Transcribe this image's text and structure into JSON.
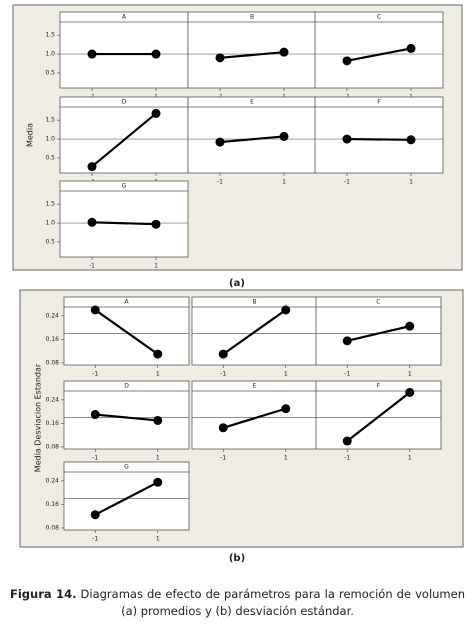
{
  "chart_data": [
    {
      "type": "line",
      "title": "A",
      "x": [
        -1,
        1
      ],
      "values": [
        1.0,
        1.0
      ],
      "color": "#000000",
      "xlim": [
        -2,
        2
      ],
      "ylim": [
        0.1,
        1.85
      ],
      "xticks": [
        -1,
        1
      ],
      "yticks": [
        0.5,
        {
          "value": 1.0,
          "label": "1.0"
        },
        1.5
      ],
      "hline": 1.0
    },
    {
      "type": "line",
      "title": "B",
      "x": [
        -1,
        1
      ],
      "values": [
        0.9,
        1.05
      ],
      "color": "#000000",
      "xlim": [
        -2,
        2
      ],
      "ylim": [
        0.1,
        1.85
      ],
      "xticks": [
        -1,
        1
      ],
      "hline": 1.0
    },
    {
      "type": "line",
      "title": "C",
      "x": [
        -1,
        1
      ],
      "values": [
        0.82,
        1.15
      ],
      "color": "#000000",
      "xlim": [
        -2,
        2
      ],
      "ylim": [
        0.1,
        1.85
      ],
      "xticks": [
        -1,
        1
      ],
      "hline": 1.0
    },
    {
      "type": "line",
      "title": "D",
      "x": [
        -1,
        1
      ],
      "values": [
        0.27,
        1.68
      ],
      "color": "#000000",
      "xlim": [
        -2,
        2
      ],
      "ylim": [
        0.1,
        1.85
      ],
      "xticks": [
        -1,
        1
      ],
      "yticks": [
        0.5,
        {
          "value": 1.0,
          "label": "1.0"
        },
        1.5
      ],
      "hline": 1.0
    },
    {
      "type": "line",
      "title": "E",
      "x": [
        -1,
        1
      ],
      "values": [
        0.92,
        1.07
      ],
      "color": "#000000",
      "xlim": [
        -2,
        2
      ],
      "ylim": [
        0.1,
        1.85
      ],
      "xticks": [
        -1,
        1
      ],
      "hline": 1.0
    },
    {
      "type": "line",
      "title": "F",
      "x": [
        -1,
        1
      ],
      "values": [
        1.0,
        0.98
      ],
      "color": "#000000",
      "xlim": [
        -2,
        2
      ],
      "ylim": [
        0.1,
        1.85
      ],
      "xticks": [
        -1,
        1
      ],
      "hline": 1.0
    },
    {
      "type": "line",
      "title": "G",
      "x": [
        -1,
        1
      ],
      "values": [
        1.02,
        0.97
      ],
      "color": "#000000",
      "xlim": [
        -2,
        2
      ],
      "ylim": [
        0.1,
        1.85
      ],
      "xticks": [
        -1,
        1
      ],
      "yticks": [
        0.5,
        {
          "value": 1.0,
          "label": "1.0"
        },
        1.5
      ],
      "hline": 1.0
    },
    {
      "type": "line",
      "title": "A",
      "x": [
        -1,
        1
      ],
      "values": [
        0.26,
        0.11
      ],
      "color": "#000000",
      "xlim": [
        -2,
        2
      ],
      "ylim": [
        0.073,
        0.27
      ],
      "xticks": [
        -1,
        1
      ],
      "yticks": [
        0.08,
        0.16,
        0.24
      ],
      "hline": 0.18
    },
    {
      "type": "line",
      "title": "B",
      "x": [
        -1,
        1
      ],
      "values": [
        0.11,
        0.26
      ],
      "color": "#000000",
      "xlim": [
        -2,
        2
      ],
      "ylim": [
        0.073,
        0.27
      ],
      "xticks": [
        -1,
        1
      ],
      "hline": 0.18
    },
    {
      "type": "line",
      "title": "C",
      "x": [
        -1,
        1
      ],
      "values": [
        0.155,
        0.205
      ],
      "color": "#000000",
      "xlim": [
        -2,
        2
      ],
      "ylim": [
        0.073,
        0.27
      ],
      "xticks": [
        -1,
        1
      ],
      "hline": 0.18
    },
    {
      "type": "line",
      "title": "D",
      "x": [
        -1,
        1
      ],
      "values": [
        0.19,
        0.17
      ],
      "color": "#000000",
      "xlim": [
        -2,
        2
      ],
      "ylim": [
        0.073,
        0.27
      ],
      "xticks": [
        -1,
        1
      ],
      "yticks": [
        0.08,
        0.16,
        0.24
      ],
      "hline": 0.18
    },
    {
      "type": "line",
      "title": "E",
      "x": [
        -1,
        1
      ],
      "values": [
        0.145,
        0.21
      ],
      "color": "#000000",
      "xlim": [
        -2,
        2
      ],
      "ylim": [
        0.073,
        0.27
      ],
      "xticks": [
        -1,
        1
      ],
      "hline": 0.18
    },
    {
      "type": "line",
      "title": "F",
      "x": [
        -1,
        1
      ],
      "values": [
        0.1,
        0.265
      ],
      "color": "#000000",
      "xlim": [
        -2,
        2
      ],
      "ylim": [
        0.073,
        0.27
      ],
      "xticks": [
        -1,
        1
      ],
      "hline": 0.18
    },
    {
      "type": "line",
      "title": "G",
      "x": [
        -1,
        1
      ],
      "values": [
        0.125,
        0.235
      ],
      "color": "#000000",
      "xlim": [
        -2,
        2
      ],
      "ylim": [
        0.073,
        0.27
      ],
      "xticks": [
        -1,
        1
      ],
      "yticks": [
        0.08,
        0.16,
        0.24
      ],
      "hline": 0.18
    }
  ],
  "panels": [
    {
      "ylabel": "Media",
      "label": "(a)"
    },
    {
      "ylabel": "Media Desviacion Estandar",
      "label": "(b)"
    }
  ],
  "caption": {
    "label": "Figura 14.",
    "text": "Diagramas de efecto de parámetros para la remoción de volumen (a) promedios y (b) desviación estándar."
  }
}
